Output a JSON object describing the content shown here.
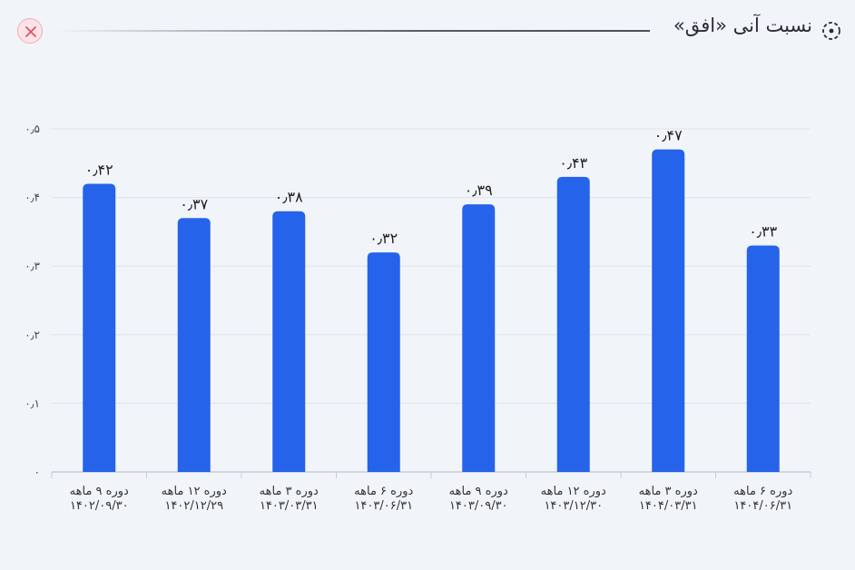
{
  "header": {
    "title": "نسبت آنی «افق»",
    "title_icon": "target-icon",
    "close_icon": "close-icon"
  },
  "colors": {
    "bar": "#2563eb",
    "grid": "#dfe3ea",
    "close_bg": "#fde3e6",
    "close_x": "#e0506a"
  },
  "chart_data": {
    "type": "bar",
    "title": "",
    "xlabel": "",
    "ylabel": "",
    "ylim": [
      0,
      0.5
    ],
    "grid": true,
    "yticks": [
      {
        "value": 0,
        "label": "۰"
      },
      {
        "value": 0.1,
        "label": "۰٫۱"
      },
      {
        "value": 0.2,
        "label": "۰٫۲"
      },
      {
        "value": 0.3,
        "label": "۰٫۳"
      },
      {
        "value": 0.4,
        "label": "۰٫۴"
      },
      {
        "value": 0.5,
        "label": "۰٫۵"
      }
    ],
    "categories": [
      {
        "period": "دوره ۹ ماهه",
        "date": "۱۴۰۲/۰۹/۳۰"
      },
      {
        "period": "دوره ۱۲ ماهه",
        "date": "۱۴۰۲/۱۲/۲۹"
      },
      {
        "period": "دوره ۳ ماهه",
        "date": "۱۴۰۳/۰۳/۳۱"
      },
      {
        "period": "دوره ۶ ماهه",
        "date": "۱۴۰۳/۰۶/۳۱"
      },
      {
        "period": "دوره ۹ ماهه",
        "date": "۱۴۰۳/۰۹/۳۰"
      },
      {
        "period": "دوره ۱۲ ماهه",
        "date": "۱۴۰۳/۱۲/۳۰"
      },
      {
        "period": "دوره ۳ ماهه",
        "date": "۱۴۰۴/۰۳/۳۱"
      },
      {
        "period": "دوره ۶ ماهه",
        "date": "۱۴۰۴/۰۶/۳۱"
      }
    ],
    "values": [
      0.42,
      0.37,
      0.38,
      0.32,
      0.39,
      0.43,
      0.47,
      0.33
    ],
    "value_labels": [
      "۰٫۴۲",
      "۰٫۳۷",
      "۰٫۳۸",
      "۰٫۳۲",
      "۰٫۳۹",
      "۰٫۴۳",
      "۰٫۴۷",
      "۰٫۳۳"
    ]
  }
}
